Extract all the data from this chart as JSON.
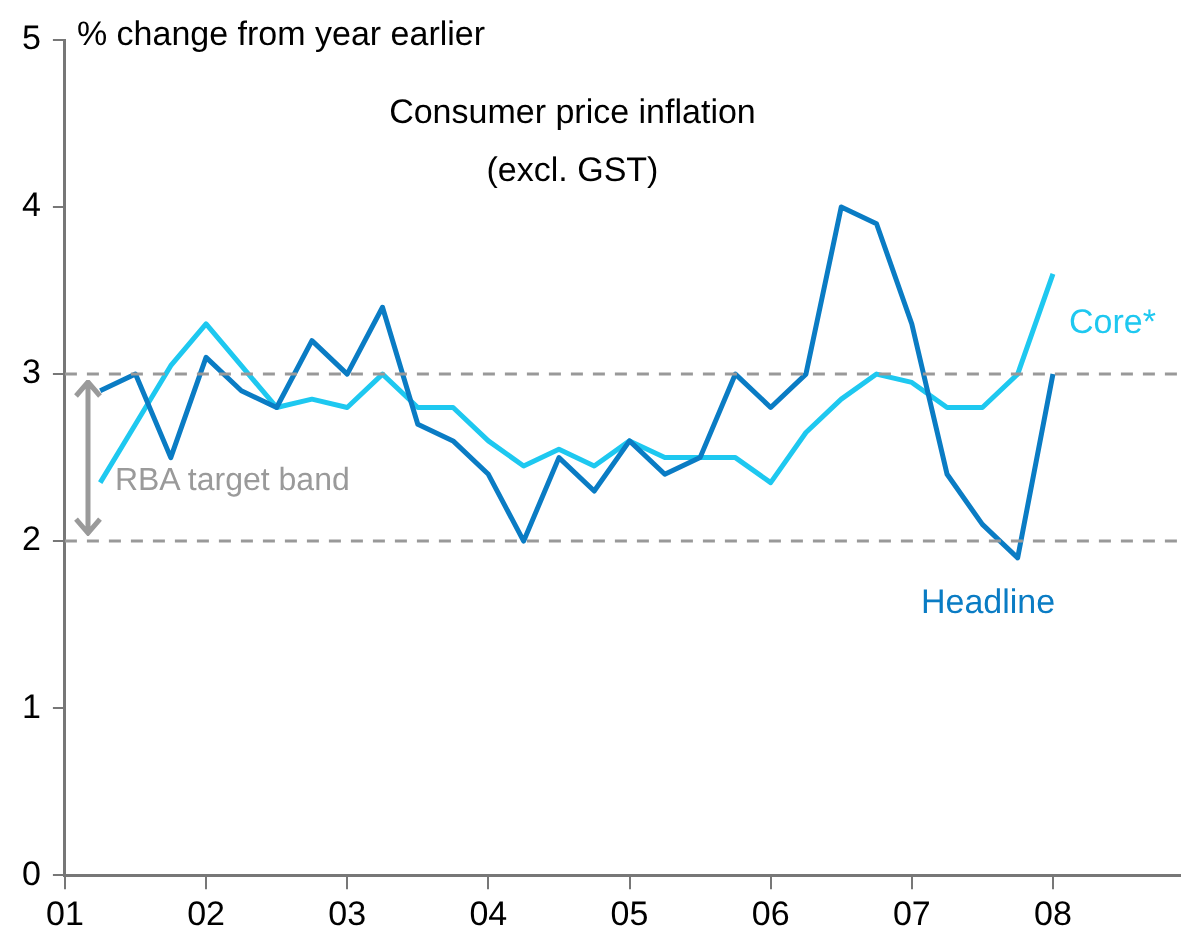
{
  "chart_data": {
    "type": "line",
    "title": "Consumer price inflation",
    "subtitle": "(excl. GST)",
    "ylabel": "% change from year earlier",
    "x": [
      2001.25,
      2001.5,
      2001.75,
      2002,
      2002.25,
      2002.5,
      2002.75,
      2003,
      2003.25,
      2003.5,
      2003.75,
      2004,
      2004.25,
      2004.5,
      2004.75,
      2005,
      2005.25,
      2005.5,
      2005.75,
      2006,
      2006.25,
      2006.5,
      2006.75,
      2007,
      2007.25,
      2007.5,
      2007.75,
      2008
    ],
    "series": [
      {
        "name": "Headline",
        "color": "#0a7cc4",
        "values": [
          2.9,
          3.0,
          2.5,
          3.1,
          2.9,
          2.8,
          3.2,
          3.0,
          3.4,
          2.7,
          2.6,
          2.4,
          2.0,
          2.5,
          2.3,
          2.6,
          2.4,
          2.5,
          3.0,
          2.8,
          3.0,
          4.0,
          3.9,
          3.3,
          2.4,
          2.1,
          1.9,
          3.0
        ]
      },
      {
        "name": "Core*",
        "color": "#1ec8f0",
        "values": [
          2.35,
          2.7,
          3.05,
          3.3,
          3.05,
          2.8,
          2.85,
          2.8,
          3.0,
          2.8,
          2.8,
          2.6,
          2.45,
          2.55,
          2.45,
          2.6,
          2.5,
          2.5,
          2.5,
          2.35,
          2.65,
          2.85,
          3.0,
          2.95,
          2.8,
          2.8,
          3.0,
          3.6
        ]
      }
    ],
    "xlim": [
      2001,
      2008.9
    ],
    "xticks": [
      {
        "value": 2001,
        "label": "01"
      },
      {
        "value": 2002,
        "label": "02"
      },
      {
        "value": 2003,
        "label": "03"
      },
      {
        "value": 2004,
        "label": "04"
      },
      {
        "value": 2005,
        "label": "05"
      },
      {
        "value": 2006,
        "label": "06"
      },
      {
        "value": 2007,
        "label": "07"
      },
      {
        "value": 2008,
        "label": "08"
      }
    ],
    "ylim": [
      0,
      5
    ],
    "yticks": [
      0,
      1,
      2,
      3,
      4,
      5
    ],
    "ref_lines": [
      {
        "axis": "y",
        "value": 3,
        "color": "#999999",
        "line_style": "dashed"
      },
      {
        "axis": "y",
        "value": 2,
        "color": "#999999",
        "line_style": "dashed"
      }
    ],
    "annotations": [
      "RBA target band"
    ],
    "grid": false,
    "legend": false,
    "marker": "none",
    "line_style": "solid"
  }
}
